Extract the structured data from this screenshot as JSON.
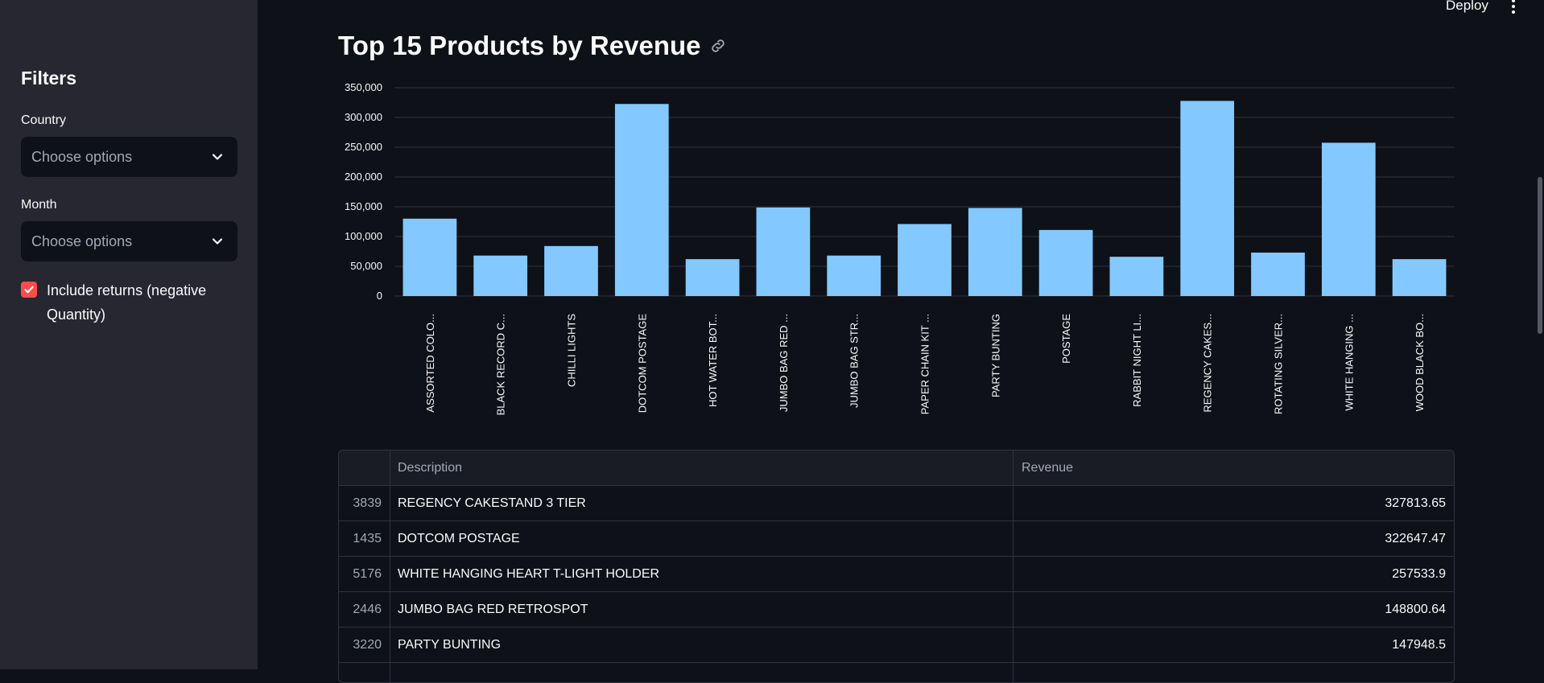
{
  "header": {
    "deploy_label": "Deploy"
  },
  "sidebar": {
    "title": "Filters",
    "country": {
      "label": "Country",
      "placeholder": "Choose options"
    },
    "month": {
      "label": "Month",
      "placeholder": "Choose options"
    },
    "include_returns": {
      "label": "Include returns (negative Quantity)",
      "checked": true
    }
  },
  "main": {
    "title": "Top 15 Products by Revenue"
  },
  "chart_data": {
    "type": "bar",
    "title": "",
    "xlabel": "",
    "ylabel": "",
    "ylim": [
      0,
      350000
    ],
    "yticks": [
      0,
      50000,
      100000,
      150000,
      200000,
      250000,
      300000,
      350000
    ],
    "ytick_labels": [
      "0",
      "50,000",
      "100,000",
      "150,000",
      "200,000",
      "250,000",
      "300,000",
      "350,000"
    ],
    "categories": [
      "ASSORTED COLO...",
      "BLACK RECORD C...",
      "CHILLI LIGHTS",
      "DOTCOM POSTAGE",
      "HOT WATER BOT...",
      "JUMBO BAG RED ...",
      "JUMBO BAG STR...",
      "PAPER CHAIN KIT ...",
      "PARTY BUNTING",
      "POSTAGE",
      "RABBIT NIGHT LI...",
      "REGENCY CAKES...",
      "ROTATING SILVER...",
      "WHITE HANGING ...",
      "WOOD BLACK BO..."
    ],
    "values": [
      130000,
      68000,
      84000,
      322647.47,
      62000,
      148800.64,
      68000,
      121000,
      147948.5,
      111000,
      66000,
      327813.65,
      73000,
      257533.9,
      62000
    ],
    "bar_color": "#83c9ff",
    "grid": true
  },
  "table": {
    "columns": [
      "",
      "Description",
      "Revenue"
    ],
    "rows": [
      {
        "index": "3839",
        "description": "REGENCY CAKESTAND 3 TIER",
        "revenue": "327813.65"
      },
      {
        "index": "1435",
        "description": "DOTCOM POSTAGE",
        "revenue": "322647.47"
      },
      {
        "index": "5176",
        "description": "WHITE HANGING HEART T-LIGHT HOLDER",
        "revenue": "257533.9"
      },
      {
        "index": "2446",
        "description": "JUMBO BAG RED RETROSPOT",
        "revenue": "148800.64"
      },
      {
        "index": "3220",
        "description": "PARTY BUNTING",
        "revenue": "147948.5"
      },
      {
        "index": "",
        "description": "",
        "revenue": ""
      }
    ]
  },
  "colors": {
    "accent": "#ff4b4b",
    "bar": "#83c9ff",
    "background": "#0e1117",
    "sidebar": "#262730"
  }
}
